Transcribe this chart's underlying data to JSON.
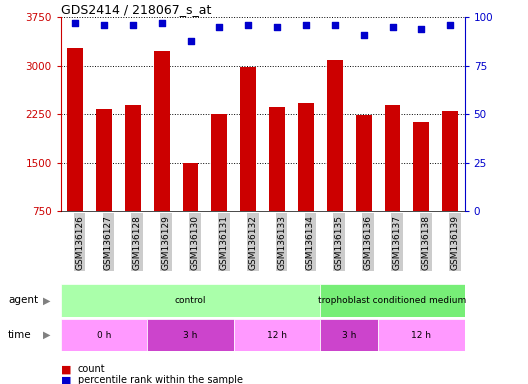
{
  "title": "GDS2414 / 218067_s_at",
  "samples": [
    "GSM136126",
    "GSM136127",
    "GSM136128",
    "GSM136129",
    "GSM136130",
    "GSM136131",
    "GSM136132",
    "GSM136133",
    "GSM136134",
    "GSM136135",
    "GSM136136",
    "GSM136137",
    "GSM136138",
    "GSM136139"
  ],
  "counts": [
    3280,
    2330,
    2390,
    3230,
    1490,
    2260,
    2980,
    2360,
    2420,
    3090,
    2240,
    2390,
    2130,
    2300
  ],
  "percentiles": [
    97,
    96,
    96,
    97,
    88,
    95,
    96,
    95,
    96,
    96,
    91,
    95,
    94,
    96
  ],
  "bar_color": "#CC0000",
  "dot_color": "#0000CC",
  "ylim_left": [
    750,
    3750
  ],
  "ylim_right": [
    0,
    100
  ],
  "yticks_left": [
    750,
    1500,
    2250,
    3000,
    3750
  ],
  "yticks_right": [
    0,
    25,
    50,
    75,
    100
  ],
  "background_color": "#ffffff",
  "agent_groups": [
    {
      "label": "control",
      "start": 0,
      "end": 9,
      "color": "#AAFFAA"
    },
    {
      "label": "trophoblast conditioned medium",
      "start": 9,
      "end": 14,
      "color": "#77EE77"
    }
  ],
  "time_groups": [
    {
      "label": "0 h",
      "start": 0,
      "end": 3,
      "color": "#FF88FF"
    },
    {
      "label": "3 h",
      "start": 3,
      "end": 6,
      "color": "#DD44DD"
    },
    {
      "label": "12 h",
      "start": 6,
      "end": 9,
      "color": "#FF88FF"
    },
    {
      "label": "3 h",
      "start": 9,
      "end": 11,
      "color": "#DD44DD"
    },
    {
      "label": "12 h",
      "start": 11,
      "end": 14,
      "color": "#FF88FF"
    }
  ],
  "bar_axis_color": "#CC0000",
  "right_axis_color": "#0000CC",
  "tick_label_bg": "#CCCCCC",
  "bar_width": 0.55
}
